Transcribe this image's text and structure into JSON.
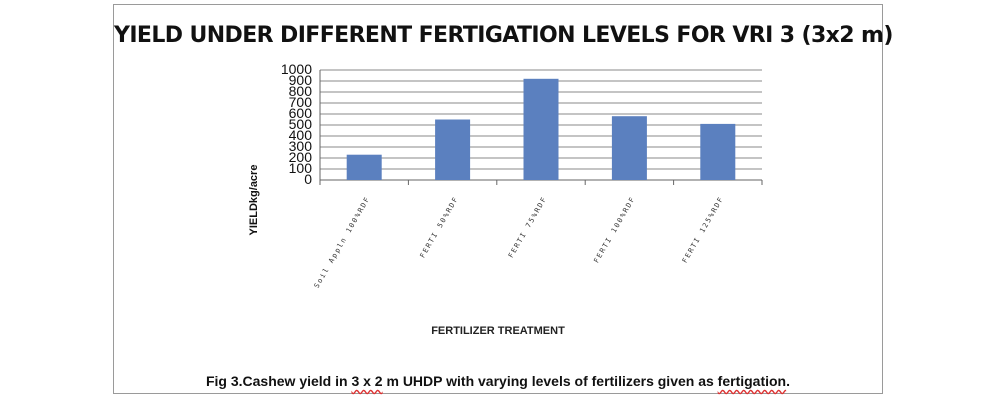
{
  "caption": {
    "before": "Fig 3.Cashew yield in ",
    "highlight1": "3 x 2",
    "middle": " m UHDP with varying levels of fertilizers given as ",
    "highlight2": "fertigation",
    "after": "."
  },
  "chart_data": {
    "type": "bar",
    "title": "YIELD UNDER DIFFERENT FERTIGATION LEVELS  FOR VRI 3 (3x2 m)",
    "xlabel": "FERTILIZER TREATMENT",
    "ylabel": "YIELDkg/acre",
    "categories": [
      "Soil Appln 100%RDF",
      "FERTI 50%RDF",
      "FERTI 75%RDF",
      "FERTI 100%RDF",
      "FERTI 125%RDF"
    ],
    "values": [
      230,
      550,
      920,
      580,
      510
    ],
    "ylim": [
      0,
      1000
    ],
    "yticks": [
      0,
      100,
      200,
      300,
      400,
      500,
      600,
      700,
      800,
      900,
      1000
    ],
    "grid": true,
    "bar_color": "#5b80bf"
  }
}
